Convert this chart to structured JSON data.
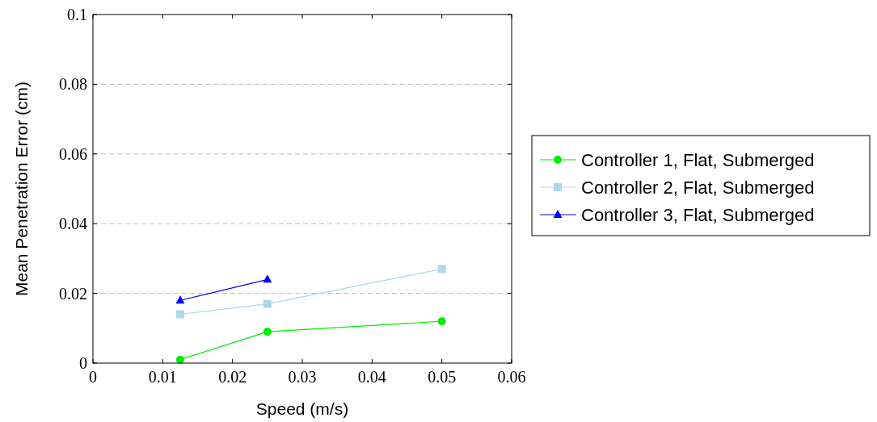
{
  "chart_data": {
    "type": "line",
    "xlabel": "Speed (m/s)",
    "ylabel": "Mean Penetration Error (cm)",
    "xlim": [
      0,
      0.06
    ],
    "xticks": [
      0,
      0.01,
      0.02,
      0.03,
      0.04,
      0.05,
      0.06
    ],
    "ylim": [
      0,
      0.1
    ],
    "yticks": [
      0,
      0.02,
      0.04,
      0.06,
      0.08,
      0.1
    ],
    "grid": "y",
    "legend": "right",
    "line_style": "solid",
    "series": [
      {
        "name": "Controller 1, Flat, Submerged",
        "color": "#00ee00",
        "marker": "circle",
        "x": [
          0.0125,
          0.025,
          0.05
        ],
        "values": [
          0.001,
          0.009,
          0.012
        ]
      },
      {
        "name": "Controller 2, Flat, Submerged",
        "color": "#add8e6",
        "marker": "square",
        "x": [
          0.0125,
          0.025,
          0.05
        ],
        "values": [
          0.014,
          0.017,
          0.027
        ]
      },
      {
        "name": "Controller 3, Flat, Submerged",
        "color": "#0000ff",
        "marker": "triangle",
        "x": [
          0.0125,
          0.025
        ],
        "values": [
          0.018,
          0.024
        ]
      }
    ]
  }
}
